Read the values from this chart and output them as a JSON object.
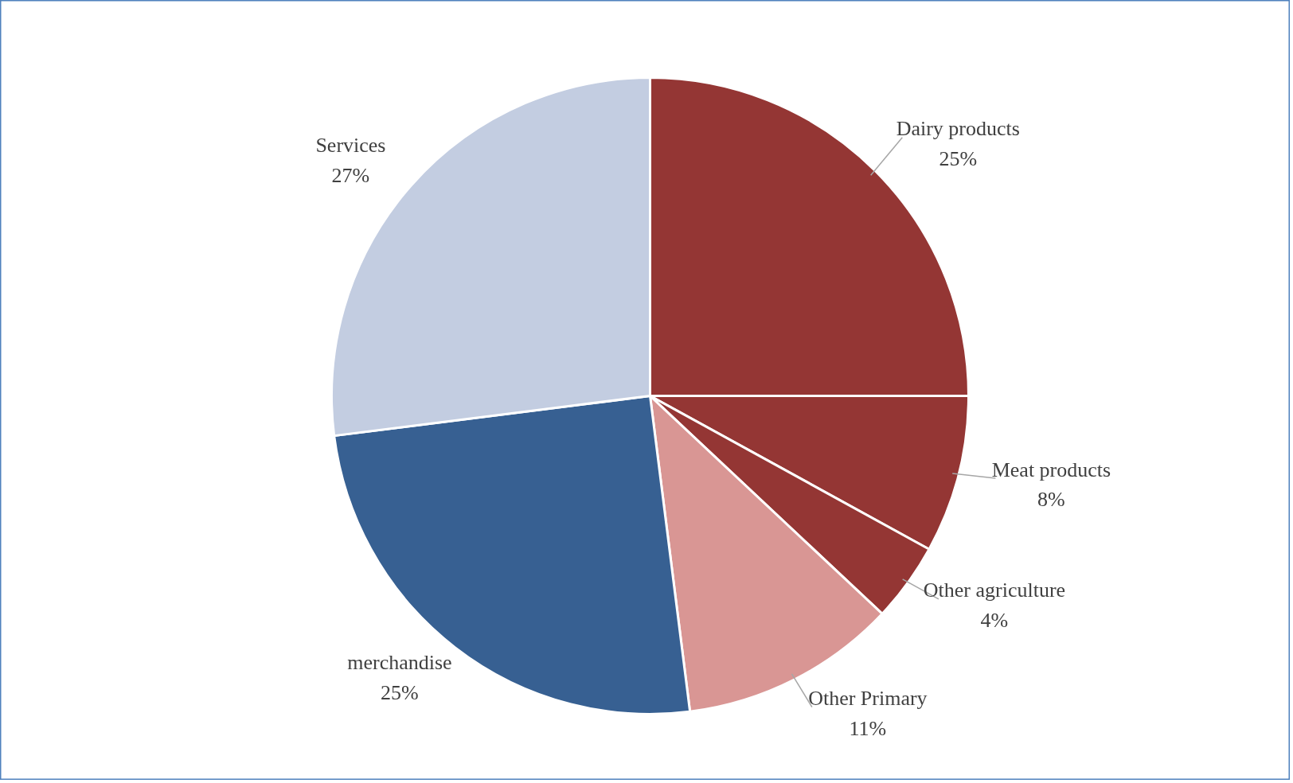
{
  "chart_data": {
    "type": "pie",
    "categories": [
      "Dairy products",
      "Meat products",
      "Other agriculture",
      "Other Primary",
      "merchandise",
      "Services"
    ],
    "values": [
      25,
      8,
      4,
      11,
      25,
      27
    ],
    "value_labels": [
      "25%",
      "8%",
      "4%",
      "11%",
      "25%",
      "27%"
    ],
    "colors": [
      "#943634",
      "#943634",
      "#943634",
      "#d99694",
      "#376092",
      "#c3cde1"
    ]
  }
}
